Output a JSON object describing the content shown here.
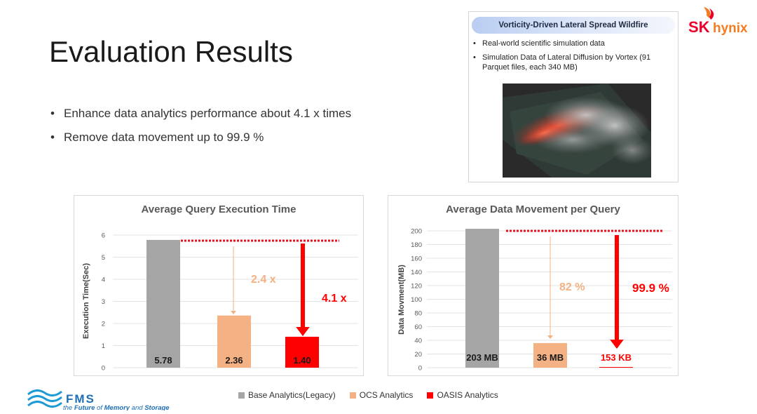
{
  "slide": {
    "title": "Evaluation Results",
    "bullets": [
      "Enhance data analytics performance about 4.1 x times",
      "Remove data movement up to 99.9 %"
    ]
  },
  "infobox": {
    "header": "Vorticity-Driven Lateral Spread Wildfire",
    "items": [
      "Real-world scientific simulation data",
      "Simulation Data of Lateral Diffusion by Vortex (91 Parquet files, each 340 MB)"
    ]
  },
  "logo": {
    "sk": "SK",
    "hynix": "hynix"
  },
  "footer": {
    "fms": "FMS",
    "tagline_prefix": "the ",
    "tagline_strong1": "Future",
    "tagline_mid": " of ",
    "tagline_strong2": "Memory",
    "tagline_and": " and ",
    "tagline_strong3": "Storage"
  },
  "colors": {
    "base": "#a5a5a5",
    "ocs": "#f4b183",
    "oasis": "#ff0000",
    "accent_red": "#ff0000",
    "ocs_text": "#f4b183"
  },
  "legend": [
    {
      "label": "Base Analytics(Legacy)",
      "color": "#a5a5a5"
    },
    {
      "label": "OCS Analytics",
      "color": "#f4b183"
    },
    {
      "label": "OASIS Analytics",
      "color": "#ff0000"
    }
  ],
  "chart_data": [
    {
      "type": "bar",
      "title": "Average Query Execution Time",
      "ylabel": "Execution Time(Sec)",
      "xlabel": "",
      "ylim": [
        0,
        6
      ],
      "yticks": [
        0,
        1,
        2,
        3,
        4,
        5,
        6
      ],
      "categories": [
        "Base Analytics(Legacy)",
        "OCS Analytics",
        "OASIS Analytics"
      ],
      "values": [
        5.78,
        2.36,
        1.4
      ],
      "data_labels": [
        "5.78",
        "2.36",
        "1.40"
      ],
      "annotations": [
        {
          "text": "2.4 x",
          "color": "#f4b183"
        },
        {
          "text": "4.1 x",
          "color": "#ff0000"
        }
      ],
      "grid": true
    },
    {
      "type": "bar",
      "title": "Average Data Movement per Query",
      "ylabel": "Data Movment(MB)",
      "xlabel": "",
      "ylim": [
        0,
        200
      ],
      "yticks": [
        0,
        20,
        40,
        60,
        80,
        100,
        120,
        140,
        160,
        180,
        200
      ],
      "categories": [
        "Base Analytics(Legacy)",
        "OCS Analytics",
        "OASIS Analytics"
      ],
      "values": [
        203,
        36,
        0.153
      ],
      "data_labels": [
        "203 MB",
        "36 MB",
        "153 KB"
      ],
      "annotations": [
        {
          "text": "82 %",
          "color": "#f4b183"
        },
        {
          "text": "99.9 %",
          "color": "#ff0000"
        }
      ],
      "grid": true
    }
  ]
}
